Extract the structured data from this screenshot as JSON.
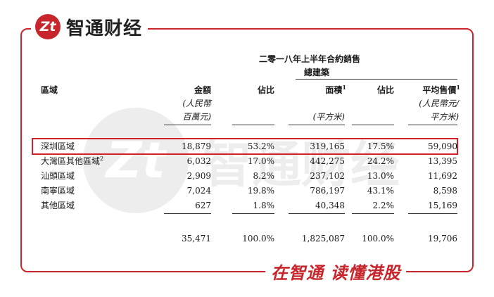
{
  "brand": {
    "logo_mark": "Zt",
    "name": "智通财经",
    "slogan": "在智通 读懂港股",
    "accent": "#c8252c"
  },
  "table": {
    "title": "二零一八年上半年合約銷售",
    "subtitle": "總建築",
    "headers": {
      "region": "區域",
      "amount": "金額",
      "amount_unit_1": "(人民幣",
      "amount_unit_2": "百萬元)",
      "share1": "佔比",
      "area": "面積",
      "area_mark": "1",
      "area_unit": "(平方米)",
      "share2": "佔比",
      "price": "平均售價",
      "price_mark": "1",
      "price_unit_1": "(人民幣元/",
      "price_unit_2": "平方米)"
    },
    "rows": [
      {
        "region": "深圳區域",
        "mark": "",
        "amount": "18,879",
        "share1": "53.2%",
        "area": "319,165",
        "share2": "17.5%",
        "price": "59,090",
        "highlighted": true
      },
      {
        "region": "大灣區其他區域",
        "mark": "2",
        "amount": "6,032",
        "share1": "17.0%",
        "area": "442,275",
        "share2": "24.2%",
        "price": "13,395"
      },
      {
        "region": "汕頭區域",
        "mark": "",
        "amount": "2,909",
        "share1": "8.2%",
        "area": "237,102",
        "share2": "13.0%",
        "price": "11,692"
      },
      {
        "region": "南寧區域",
        "mark": "",
        "amount": "7,024",
        "share1": "19.8%",
        "area": "786,197",
        "share2": "43.1%",
        "price": "8,598"
      },
      {
        "region": "其他區域",
        "mark": "",
        "amount": "627",
        "share1": "1.8%",
        "area": "40,348",
        "share2": "2.2%",
        "price": "15,169"
      }
    ],
    "total": {
      "amount": "35,471",
      "share1": "100.0%",
      "area": "1,825,087",
      "share2": "100.0%",
      "price": "19,706"
    }
  }
}
